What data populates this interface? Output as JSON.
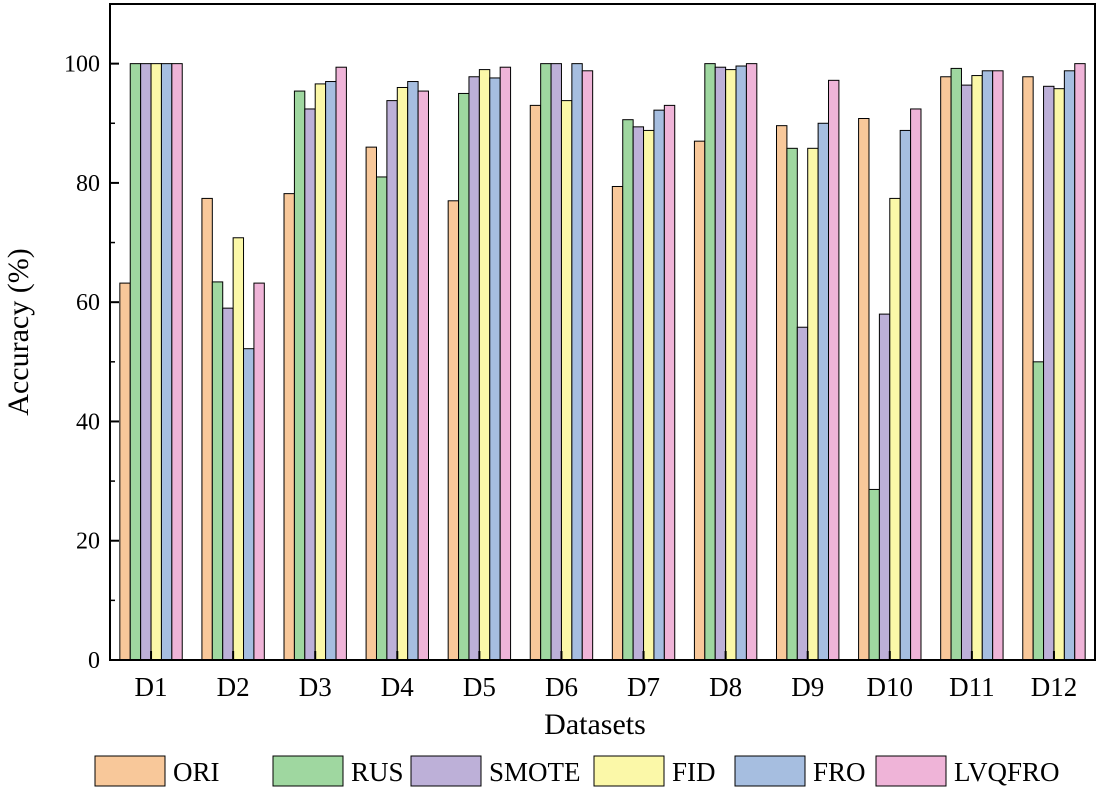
{
  "chart_data": {
    "type": "bar",
    "title": "",
    "xlabel": "Datasets",
    "ylabel": "Accuracy (%)",
    "ylim": [
      0,
      110
    ],
    "yticks": [
      0,
      20,
      40,
      60,
      80,
      100
    ],
    "grid": false,
    "legend_position": "bottom",
    "categories": [
      "D1",
      "D2",
      "D3",
      "D4",
      "D5",
      "D6",
      "D7",
      "D8",
      "D9",
      "D10",
      "D11",
      "D12"
    ],
    "series": [
      {
        "name": "ORI",
        "color": "#F8C89A",
        "values": [
          63.2,
          77.4,
          78.2,
          86.0,
          77.0,
          93.0,
          79.4,
          87.0,
          89.6,
          90.8,
          97.8,
          97.8
        ]
      },
      {
        "name": "RUS",
        "color": "#9FD7A0",
        "values": [
          100,
          63.4,
          95.4,
          81.0,
          95.0,
          100,
          90.6,
          100,
          85.8,
          28.6,
          99.2,
          50.0
        ]
      },
      {
        "name": "SMOTE",
        "color": "#BDB0D8",
        "values": [
          100,
          59.0,
          92.4,
          93.8,
          97.8,
          100,
          89.4,
          99.4,
          55.8,
          58.0,
          96.4,
          96.2
        ]
      },
      {
        "name": "FID",
        "color": "#FBF8A8",
        "values": [
          100,
          70.8,
          96.6,
          96.0,
          99.0,
          93.8,
          88.8,
          99.0,
          85.8,
          77.4,
          98.0,
          95.8
        ]
      },
      {
        "name": "FRO",
        "color": "#A6BEE0",
        "values": [
          100,
          52.2,
          97.0,
          97.0,
          97.6,
          100,
          92.2,
          99.6,
          90.0,
          88.8,
          98.8,
          98.8
        ]
      },
      {
        "name": "LVQFRO",
        "color": "#EFB4D8",
        "values": [
          100,
          63.2,
          99.4,
          95.4,
          99.4,
          98.8,
          93.0,
          100,
          97.2,
          92.4,
          98.8,
          100
        ]
      }
    ]
  }
}
